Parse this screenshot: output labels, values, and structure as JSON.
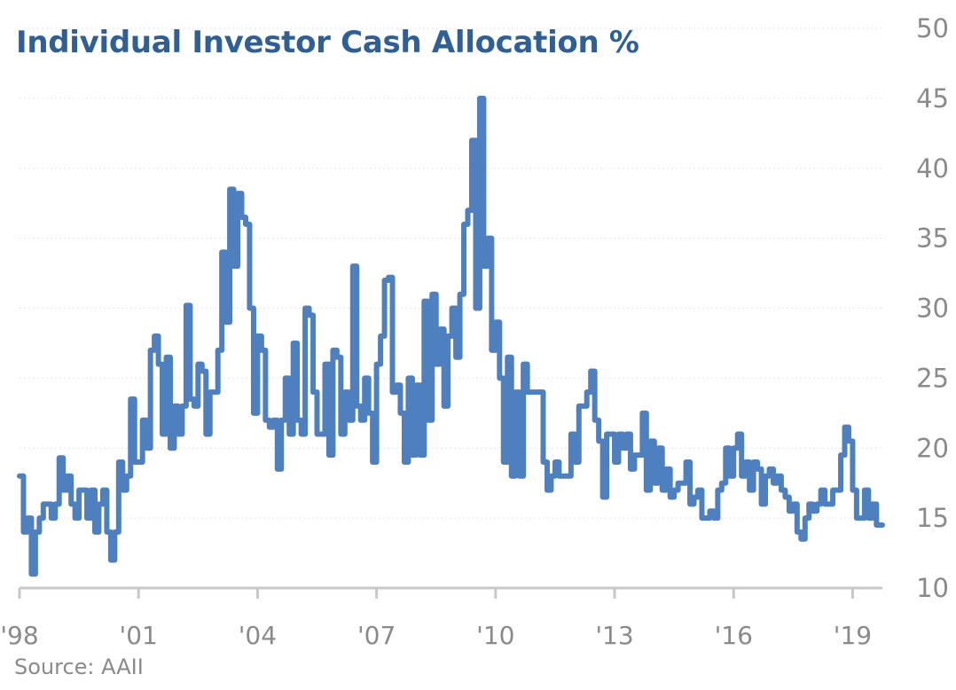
{
  "chart_data": {
    "type": "line",
    "step": true,
    "title": "Individual Investor Cash Allocation %",
    "source": "Source: AAII",
    "xlabel": "",
    "ylabel": "",
    "ylim": [
      10,
      50
    ],
    "xlim": [
      1998,
      2019.75
    ],
    "yticks": [
      10,
      15,
      20,
      25,
      30,
      35,
      40,
      45,
      50
    ],
    "ytick_labels": [
      "10",
      "15",
      "20",
      "25",
      "30",
      "35",
      "40",
      "45",
      "50"
    ],
    "xticks": [
      1998,
      2001,
      2004,
      2007,
      2010,
      2013,
      2016,
      2019
    ],
    "xtick_labels": [
      "'98",
      "'01",
      "'04",
      "'07",
      "'10",
      "'13",
      "'16",
      "'19"
    ],
    "grid": "horizontal dotted",
    "y_axis_position": "right",
    "series": [
      {
        "name": "Cash Allocation %",
        "color": "#4e7fbe",
        "x": [
          1998.0,
          1998.1,
          1998.2,
          1998.3,
          1998.4,
          1998.5,
          1998.6,
          1998.8,
          1998.9,
          1999.0,
          1999.1,
          1999.2,
          1999.3,
          1999.4,
          1999.5,
          1999.7,
          1999.8,
          1999.9,
          2000.0,
          2000.1,
          2000.2,
          2000.3,
          2000.4,
          2000.5,
          2000.6,
          2000.7,
          2000.8,
          2000.9,
          2001.1,
          2001.2,
          2001.3,
          2001.4,
          2001.5,
          2001.6,
          2001.7,
          2001.8,
          2001.9,
          2002.0,
          2002.1,
          2002.2,
          2002.3,
          2002.4,
          2002.5,
          2002.6,
          2002.7,
          2002.8,
          2003.0,
          2003.1,
          2003.2,
          2003.3,
          2003.4,
          2003.5,
          2003.6,
          2003.7,
          2003.8,
          2003.9,
          2004.0,
          2004.1,
          2004.2,
          2004.3,
          2004.4,
          2004.5,
          2004.6,
          2004.7,
          2004.8,
          2004.9,
          2005.0,
          2005.1,
          2005.2,
          2005.3,
          2005.4,
          2005.5,
          2005.7,
          2005.8,
          2005.9,
          2006.0,
          2006.1,
          2006.2,
          2006.3,
          2006.4,
          2006.5,
          2006.6,
          2006.7,
          2006.8,
          2006.9,
          2007.0,
          2007.1,
          2007.2,
          2007.3,
          2007.4,
          2007.5,
          2007.6,
          2007.7,
          2007.8,
          2007.9,
          2008.0,
          2008.1,
          2008.2,
          2008.3,
          2008.4,
          2008.5,
          2008.6,
          2008.7,
          2008.8,
          2008.9,
          2009.0,
          2009.1,
          2009.2,
          2009.3,
          2009.4,
          2009.5,
          2009.6,
          2009.7,
          2009.8,
          2009.9,
          2010.0,
          2010.1,
          2010.2,
          2010.3,
          2010.4,
          2010.5,
          2010.6,
          2010.7,
          2010.8,
          2011.2,
          2011.3,
          2011.4,
          2011.5,
          2011.6,
          2011.9,
          2012.0,
          2012.1,
          2012.3,
          2012.4,
          2012.5,
          2012.6,
          2012.7,
          2012.8,
          2013.0,
          2013.1,
          2013.2,
          2013.3,
          2013.4,
          2013.5,
          2013.7,
          2013.8,
          2013.9,
          2014.0,
          2014.1,
          2014.2,
          2014.3,
          2014.4,
          2014.5,
          2014.6,
          2014.8,
          2014.9,
          2015.0,
          2015.1,
          2015.2,
          2015.4,
          2015.5,
          2015.6,
          2015.7,
          2015.8,
          2015.9,
          2016.0,
          2016.1,
          2016.2,
          2016.3,
          2016.4,
          2016.5,
          2016.6,
          2016.7,
          2016.8,
          2016.9,
          2017.0,
          2017.1,
          2017.2,
          2017.3,
          2017.4,
          2017.5,
          2017.6,
          2017.7,
          2017.8,
          2017.9,
          2018.0,
          2018.1,
          2018.2,
          2018.3,
          2018.5,
          2018.7,
          2018.8,
          2018.9,
          2019.0,
          2019.1,
          2019.3,
          2019.4,
          2019.5,
          2019.6
        ],
        "y": [
          18,
          14,
          15,
          11,
          14,
          15,
          16,
          15,
          16,
          19.3,
          17,
          18,
          16,
          15,
          17,
          15,
          17,
          14,
          16,
          17,
          14,
          12,
          14,
          19,
          17,
          18,
          23.5,
          19,
          22,
          20,
          27,
          28,
          26,
          21,
          26.5,
          20,
          23,
          21,
          23,
          30.2,
          23.5,
          23,
          26,
          25.5,
          21,
          24,
          27,
          34,
          29,
          38.5,
          33,
          38.2,
          36.5,
          36,
          30,
          22.5,
          28,
          27,
          22,
          21.5,
          22,
          18.5,
          22,
          25,
          21,
          27.5,
          22,
          21,
          30,
          29.5,
          24,
          21,
          26,
          19.5,
          27,
          26.5,
          21,
          24,
          22,
          33,
          23,
          22,
          25,
          22.5,
          19,
          26,
          28,
          32,
          32.2,
          24,
          24.5,
          22.5,
          19,
          25,
          19.5,
          24.5,
          19.5,
          30.5,
          22,
          31,
          26,
          28.5,
          23,
          28,
          30,
          26.5,
          31,
          36,
          37,
          42,
          30,
          45,
          33,
          35,
          27,
          29,
          25,
          19,
          26.5,
          18,
          24,
          18,
          26,
          24,
          19,
          17,
          18,
          19,
          18,
          21,
          19,
          23,
          24,
          25.5,
          22,
          20.5,
          16.5,
          21,
          19,
          21,
          20,
          21,
          18.5,
          19.5,
          22.5,
          17,
          20.5,
          17.5,
          20,
          17,
          18.5,
          16.5,
          17,
          17.5,
          19,
          16,
          16.5,
          17,
          15,
          15.5,
          15,
          17,
          17.5,
          20,
          18,
          20,
          21,
          18,
          19,
          17,
          19,
          18.5,
          16,
          18,
          18.5,
          17.5,
          18,
          17,
          16.5,
          15.5,
          16,
          14,
          13.5,
          15,
          16,
          15.5,
          16,
          17,
          16,
          17,
          19.5,
          21.5,
          20.5,
          17,
          15,
          17,
          15,
          16,
          14.5
        ]
      }
    ]
  }
}
